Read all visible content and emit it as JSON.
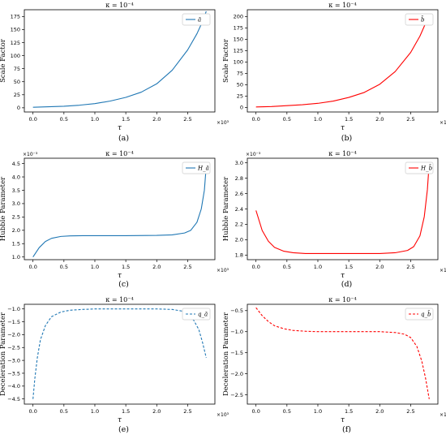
{
  "figure": {
    "panels": [
      {
        "caption": "(a)",
        "kappa_label": "κ = 10⁻⁴",
        "exp_label": "×10³",
        "offset_label": ""
      },
      {
        "caption": "(b)",
        "kappa_label": "κ = 10⁻⁴",
        "exp_label": "×10³",
        "offset_label": ""
      },
      {
        "caption": "(c)",
        "kappa_label": "κ = 10⁻⁴",
        "exp_label": "×10³",
        "offset_label": "×10⁻³"
      },
      {
        "caption": "(d)",
        "kappa_label": "κ = 10⁻⁴",
        "exp_label": "×10³",
        "offset_label": "×10⁻³"
      },
      {
        "caption": "(e)",
        "kappa_label": "κ = 10⁻⁴",
        "exp_label": "×10³",
        "offset_label": ""
      },
      {
        "caption": "(f)",
        "kappa_label": "κ = 10⁻⁴",
        "exp_label": "×10³",
        "offset_label": ""
      }
    ]
  },
  "chart_data": [
    {
      "type": "line",
      "title": "κ = 10⁻⁴",
      "xlabel": "τ",
      "ylabel": "Scale Factor",
      "xlim": [
        -0.14,
        2.94
      ],
      "ylim": [
        -8,
        188
      ],
      "xticks": [
        0.0,
        0.5,
        1.0,
        1.5,
        2.0,
        2.5
      ],
      "xtick_labels": [
        "0.0",
        "0.5",
        "1.0",
        "1.5",
        "2.0",
        "2.5"
      ],
      "yticks": [
        0,
        25,
        50,
        75,
        100,
        125,
        150,
        175
      ],
      "ytick_labels": [
        "0",
        "25",
        "50",
        "75",
        "100",
        "125",
        "150",
        "175"
      ],
      "legend_position": "top-right",
      "grid": false,
      "series": [
        {
          "name": "ā",
          "color": "#1f77b4",
          "dash": "solid",
          "x": [
            0.0,
            0.25,
            0.5,
            0.75,
            1.0,
            1.25,
            1.5,
            1.75,
            2.0,
            2.25,
            2.5,
            2.65,
            2.75,
            2.8
          ],
          "y": [
            1,
            2,
            3,
            5,
            8,
            13,
            20,
            30,
            46,
            72,
            111,
            142,
            168,
            185
          ]
        }
      ]
    },
    {
      "type": "line",
      "title": "κ = 10⁻⁴",
      "xlabel": "τ",
      "ylabel": "Scale Factor",
      "xlim": [
        -0.14,
        2.94
      ],
      "ylim": [
        -10,
        215
      ],
      "xticks": [
        0.0,
        0.5,
        1.0,
        1.5,
        2.0,
        2.5
      ],
      "xtick_labels": [
        "0.0",
        "0.5",
        "1.0",
        "1.5",
        "2.0",
        "2.5"
      ],
      "yticks": [
        0,
        25,
        50,
        75,
        100,
        125,
        150,
        175,
        200
      ],
      "ytick_labels": [
        "0",
        "25",
        "50",
        "75",
        "100",
        "125",
        "150",
        "175",
        "200"
      ],
      "legend_position": "top-right",
      "grid": false,
      "series": [
        {
          "name": "b̄",
          "color": "#ff0000",
          "dash": "solid",
          "x": [
            0.0,
            0.25,
            0.5,
            0.75,
            1.0,
            1.25,
            1.5,
            1.75,
            2.0,
            2.25,
            2.5,
            2.65,
            2.75,
            2.8
          ],
          "y": [
            1,
            2,
            4,
            6,
            9,
            14,
            22,
            33,
            51,
            79,
            121,
            157,
            188,
            205
          ]
        }
      ]
    },
    {
      "type": "line",
      "title": "κ = 10⁻⁴",
      "xlabel": "τ",
      "ylabel": "Hubble Parameter",
      "xlim": [
        -0.14,
        2.94
      ],
      "ylim": [
        0.9,
        4.7
      ],
      "xticks": [
        0.0,
        0.5,
        1.0,
        1.5,
        2.0,
        2.5
      ],
      "xtick_labels": [
        "0.0",
        "0.5",
        "1.0",
        "1.5",
        "2.0",
        "2.5"
      ],
      "yticks": [
        1.0,
        1.5,
        2.0,
        2.5,
        3.0,
        3.5,
        4.0,
        4.5
      ],
      "ytick_labels": [
        "1.0",
        "1.5",
        "2.0",
        "2.5",
        "3.0",
        "3.5",
        "4.0",
        "4.5"
      ],
      "legend_position": "top-right",
      "grid": false,
      "series": [
        {
          "name": "H_ā",
          "color": "#1f77b4",
          "dash": "solid",
          "x": [
            0.0,
            0.1,
            0.2,
            0.3,
            0.45,
            0.6,
            0.8,
            1.0,
            1.5,
            2.0,
            2.25,
            2.45,
            2.55,
            2.65,
            2.72,
            2.77,
            2.8
          ],
          "y": [
            1.0,
            1.35,
            1.58,
            1.7,
            1.77,
            1.79,
            1.8,
            1.8,
            1.8,
            1.81,
            1.83,
            1.9,
            2.0,
            2.3,
            2.8,
            3.5,
            4.4
          ]
        }
      ]
    },
    {
      "type": "line",
      "title": "κ = 10⁻⁴",
      "xlabel": "τ",
      "ylabel": "Hubble Parameter",
      "xlim": [
        -0.14,
        2.94
      ],
      "ylim": [
        1.74,
        3.06
      ],
      "xticks": [
        0.0,
        0.5,
        1.0,
        1.5,
        2.0,
        2.5
      ],
      "xtick_labels": [
        "0.0",
        "0.5",
        "1.0",
        "1.5",
        "2.0",
        "2.5"
      ],
      "yticks": [
        1.8,
        2.0,
        2.2,
        2.4,
        2.6,
        2.8,
        3.0
      ],
      "ytick_labels": [
        "1.8",
        "2.0",
        "2.2",
        "2.4",
        "2.6",
        "2.8",
        "3.0"
      ],
      "legend_position": "top-right",
      "grid": false,
      "series": [
        {
          "name": "H_b̄",
          "color": "#ff0000",
          "dash": "solid",
          "x": [
            0.0,
            0.1,
            0.2,
            0.3,
            0.45,
            0.6,
            0.8,
            1.0,
            1.5,
            2.0,
            2.25,
            2.45,
            2.55,
            2.65,
            2.72,
            2.77,
            2.8
          ],
          "y": [
            2.38,
            2.12,
            1.98,
            1.9,
            1.85,
            1.83,
            1.82,
            1.82,
            1.82,
            1.82,
            1.83,
            1.86,
            1.91,
            2.05,
            2.3,
            2.65,
            3.0
          ]
        }
      ]
    },
    {
      "type": "line",
      "title": "κ = 10⁻⁴",
      "xlabel": "τ",
      "ylabel": "Deceleration Parameter",
      "xlim": [
        -0.14,
        2.94
      ],
      "ylim": [
        -4.7,
        -0.82
      ],
      "xticks": [
        0.0,
        0.5,
        1.0,
        1.5,
        2.0,
        2.5
      ],
      "xtick_labels": [
        "0.0",
        "0.5",
        "1.0",
        "1.5",
        "2.0",
        "2.5"
      ],
      "yticks": [
        -4.5,
        -4.0,
        -3.5,
        -3.0,
        -2.5,
        -2.0,
        -1.5,
        -1.0
      ],
      "ytick_labels": [
        "−4.5",
        "−4.0",
        "−3.5",
        "−3.0",
        "−2.5",
        "−2.0",
        "−1.5",
        "−1.0"
      ],
      "legend_position": "top-right",
      "grid": false,
      "series": [
        {
          "name": "q_ā",
          "color": "#1f77b4",
          "dash": "dashed",
          "x": [
            0.0,
            0.03,
            0.07,
            0.12,
            0.2,
            0.3,
            0.45,
            0.6,
            0.8,
            1.0,
            1.5,
            2.0,
            2.25,
            2.4,
            2.5,
            2.6,
            2.68,
            2.74,
            2.8
          ],
          "y": [
            -4.5,
            -3.7,
            -2.9,
            -2.2,
            -1.65,
            -1.3,
            -1.12,
            -1.05,
            -1.02,
            -1.0,
            -1.0,
            -1.0,
            -1.02,
            -1.08,
            -1.2,
            -1.45,
            -1.8,
            -2.3,
            -2.9
          ]
        }
      ]
    },
    {
      "type": "line",
      "title": "κ = 10⁻⁴",
      "xlabel": "τ",
      "ylabel": "Deceleration Parameter",
      "xlim": [
        -0.14,
        2.94
      ],
      "ylim": [
        -2.72,
        -0.35
      ],
      "xticks": [
        0.0,
        0.5,
        1.0,
        1.5,
        2.0,
        2.5
      ],
      "xtick_labels": [
        "0.0",
        "0.5",
        "1.0",
        "1.5",
        "2.0",
        "2.5"
      ],
      "yticks": [
        -2.5,
        -2.0,
        -1.5,
        -1.0,
        -0.5
      ],
      "ytick_labels": [
        "−2.5",
        "−2.0",
        "−1.5",
        "−1.0",
        "−0.5"
      ],
      "legend_position": "top-right",
      "grid": false,
      "series": [
        {
          "name": "q_b̄",
          "color": "#ff0000",
          "dash": "dashed",
          "x": [
            0.0,
            0.1,
            0.2,
            0.3,
            0.45,
            0.6,
            0.8,
            1.0,
            1.5,
            2.0,
            2.25,
            2.4,
            2.5,
            2.6,
            2.68,
            2.74,
            2.8
          ],
          "y": [
            -0.43,
            -0.62,
            -0.76,
            -0.86,
            -0.93,
            -0.97,
            -0.99,
            -1.0,
            -1.0,
            -1.0,
            -1.02,
            -1.06,
            -1.14,
            -1.35,
            -1.7,
            -2.1,
            -2.6
          ]
        }
      ]
    }
  ]
}
